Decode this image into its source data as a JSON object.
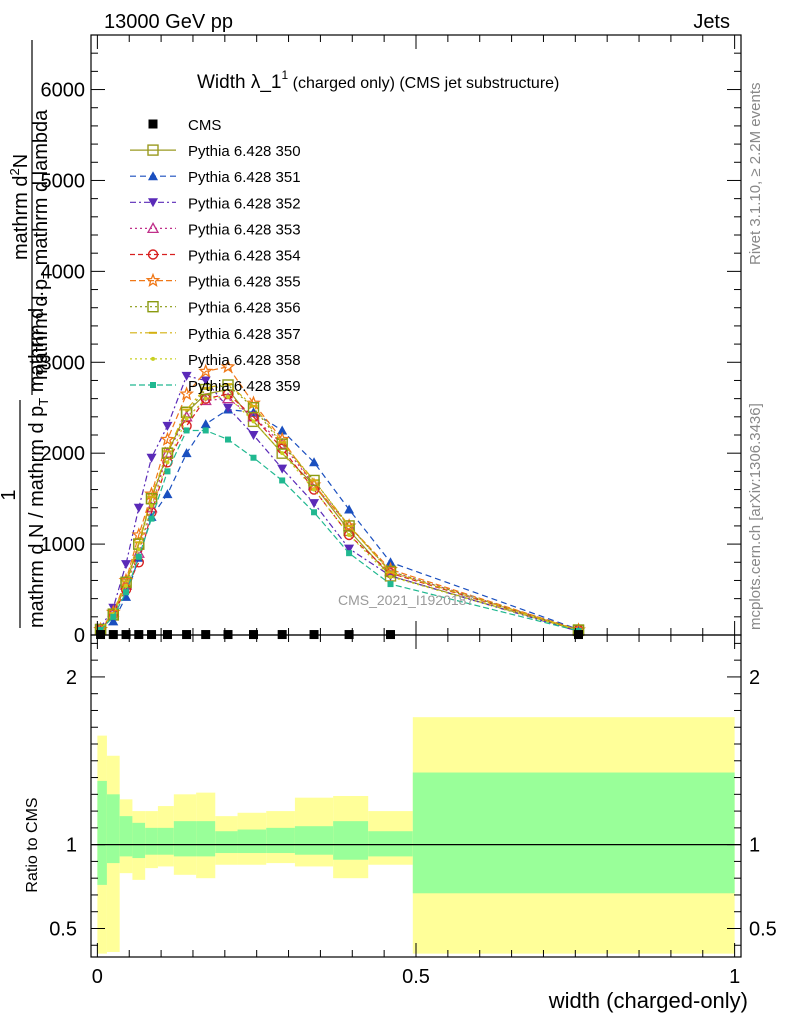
{
  "header": {
    "left": "13000 GeV pp",
    "right": "Jets"
  },
  "side_labels": {
    "rivet": "Rivet 3.1.10, ≥ 2.2M events",
    "mcplots": "mcplots.cern.ch [arXiv:1306.3436]"
  },
  "plot_title": {
    "main": "Width λ_1",
    "sup": "1",
    "sub": " (charged only) (CMS jet substructure)"
  },
  "y_label": {
    "line1": "mathrm d",
    "sup": "2",
    "line1b": "N",
    "line2": "mathrm d p",
    "sub": "T",
    "line2b": " mathrm d lambda",
    "frac_top": "1",
    "line3": "mathrm d N / mathrm d p",
    "line3b": " mathrm d ...",
    "full": "1 / mathrm d N / mathrm d p_T mathrm d^2N / mathrm d p_T mathrm d lambda"
  },
  "ratio_label": "Ratio to CMS",
  "x_label": "width (charged-only)",
  "watermark": "CMS_2021_I1920187",
  "chart_data": {
    "type": "line",
    "title": "Width λ_1^1 (charged only) (CMS jet substructure)",
    "xlabel": "width (charged-only)",
    "ylabel": "1/N dN/dpT dlambda",
    "xlim": [
      -0.01,
      1.01
    ],
    "ylim": [
      0,
      6600
    ],
    "y_ticks": [
      "0",
      "1000",
      "2000",
      "3000",
      "4000",
      "5000",
      "6000"
    ],
    "x_ticks": [
      "0",
      "0.5",
      "1"
    ],
    "ratio_ylim": [
      0.33,
      2.25
    ],
    "ratio_ticks": [
      "0.5",
      "1",
      "2"
    ],
    "x": [
      0.005,
      0.025,
      0.045,
      0.065,
      0.085,
      0.11,
      0.14,
      0.17,
      0.205,
      0.245,
      0.29,
      0.34,
      0.395,
      0.46,
      0.755
    ],
    "cms": {
      "name": "CMS",
      "values": [
        5,
        5,
        5,
        5,
        5,
        5,
        5,
        5,
        5,
        5,
        5,
        5,
        5,
        5,
        5
      ]
    },
    "series": [
      {
        "name": "Pythia 6.428 350",
        "color": "#9a9a20",
        "marker": "square-open",
        "dash": "",
        "values": [
          60,
          220,
          560,
          1000,
          1500,
          2000,
          2450,
          2650,
          2700,
          2350,
          2000,
          1650,
          1150,
          650,
          50
        ]
      },
      {
        "name": "Pythia 6.428 351",
        "color": "#1a4fbf",
        "marker": "triangle-up-filled",
        "dash": "6,4",
        "values": [
          40,
          150,
          420,
          850,
          1300,
          1550,
          2000,
          2320,
          2480,
          2450,
          2250,
          1900,
          1380,
          800,
          60
        ]
      },
      {
        "name": "Pythia 6.428 352",
        "color": "#5a2ab8",
        "marker": "triangle-down-filled",
        "dash": "6,3,2,3",
        "values": [
          80,
          300,
          780,
          1400,
          1950,
          2300,
          2850,
          2800,
          2500,
          2200,
          1830,
          1450,
          950,
          650,
          40
        ]
      },
      {
        "name": "Pythia 6.428 353",
        "color": "#c0308a",
        "marker": "triangle-up-open",
        "dash": "2,3",
        "values": [
          60,
          250,
          550,
          900,
          1400,
          2000,
          2400,
          2580,
          2600,
          2400,
          2100,
          1650,
          1200,
          700,
          60
        ]
      },
      {
        "name": "Pythia 6.428 354",
        "color": "#d82020",
        "marker": "circle-open",
        "dash": "5,3",
        "values": [
          60,
          230,
          500,
          800,
          1350,
          1900,
          2300,
          2600,
          2650,
          2400,
          2050,
          1600,
          1100,
          680,
          55
        ]
      },
      {
        "name": "Pythia 6.428 355",
        "color": "#f07818",
        "marker": "star-open",
        "dash": "6,3",
        "values": [
          60,
          250,
          600,
          1100,
          1550,
          2150,
          2650,
          2900,
          2950,
          2550,
          2150,
          1650,
          1200,
          720,
          55
        ]
      },
      {
        "name": "Pythia 6.428 356",
        "color": "#8a9a10",
        "marker": "square-open",
        "dash": "2,3",
        "values": [
          60,
          230,
          580,
          1000,
          1500,
          2000,
          2450,
          2700,
          2750,
          2500,
          2100,
          1700,
          1200,
          700,
          55
        ]
      },
      {
        "name": "Pythia 6.428 357",
        "color": "#d4b010",
        "marker": "tick",
        "dash": "7,3,2,3",
        "values": [
          60,
          240,
          590,
          1020,
          1520,
          2020,
          2480,
          2720,
          2760,
          2520,
          2120,
          1700,
          1200,
          690,
          55
        ]
      },
      {
        "name": "Pythia 6.428 358",
        "color": "#c8d020",
        "marker": "dot",
        "dash": "2,3",
        "values": [
          55,
          220,
          540,
          940,
          1420,
          1900,
          2380,
          2600,
          2620,
          2350,
          2000,
          1600,
          1100,
          640,
          50
        ]
      },
      {
        "name": "Pythia 6.428 359",
        "color": "#20b890",
        "marker": "square-small",
        "dash": "6,3",
        "values": [
          55,
          200,
          470,
          860,
          1280,
          1800,
          2250,
          2250,
          2150,
          1950,
          1700,
          1350,
          900,
          560,
          45
        ]
      }
    ],
    "ratio_bands": {
      "edges": [
        0.0,
        0.015,
        0.035,
        0.055,
        0.075,
        0.095,
        0.12,
        0.155,
        0.185,
        0.22,
        0.265,
        0.31,
        0.37,
        0.425,
        0.495,
        1.0
      ],
      "inner_hi": [
        1.38,
        1.3,
        1.17,
        1.13,
        1.1,
        1.1,
        1.14,
        1.14,
        1.08,
        1.09,
        1.1,
        1.11,
        1.14,
        1.08,
        1.43
      ],
      "inner_lo": [
        0.76,
        0.89,
        0.93,
        0.92,
        0.94,
        0.94,
        0.93,
        0.93,
        0.95,
        0.95,
        0.95,
        0.94,
        0.91,
        0.93,
        0.71
      ],
      "outer_hi": [
        1.65,
        1.53,
        1.27,
        1.2,
        1.2,
        1.23,
        1.3,
        1.31,
        1.17,
        1.19,
        1.2,
        1.28,
        1.29,
        1.2,
        1.76
      ],
      "outer_lo": [
        0.35,
        0.36,
        0.83,
        0.79,
        0.86,
        0.87,
        0.82,
        0.8,
        0.88,
        0.88,
        0.89,
        0.87,
        0.8,
        0.88,
        0.35
      ],
      "inner_color": "#99ff99",
      "outer_color": "#ffff99"
    }
  }
}
